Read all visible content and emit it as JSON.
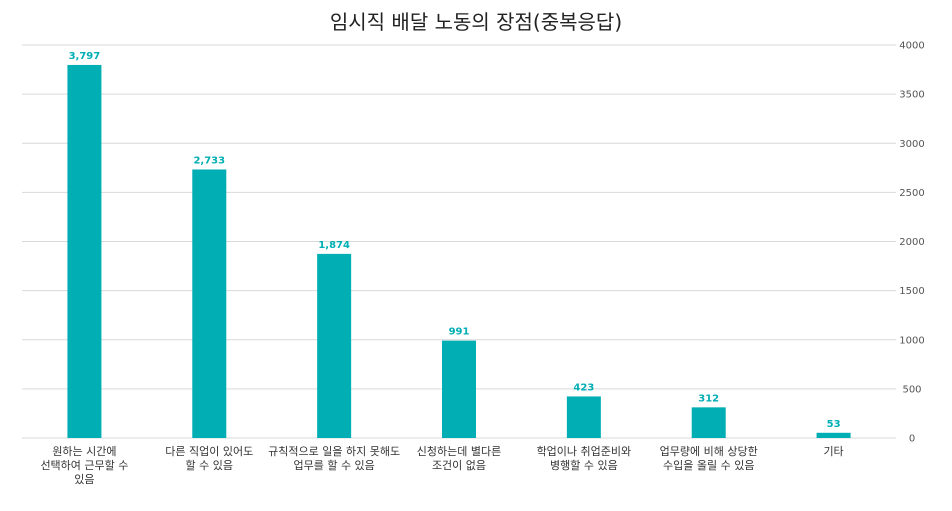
{
  "chart_data": {
    "type": "bar",
    "title": "임시직 배달 노동의 장점(중복응답)",
    "xlabel": "",
    "ylabel": "",
    "ylim": [
      0,
      4000
    ],
    "yticks": [
      0,
      500,
      1000,
      1500,
      2000,
      2500,
      3000,
      3500,
      4000
    ],
    "y_axis_position": "right",
    "grid": true,
    "legend": "none",
    "categories": [
      [
        "원하는 시간에",
        "선택하여 근무할 수",
        "있음"
      ],
      [
        "다른 직업이 있어도",
        "할 수 있음"
      ],
      [
        "규칙적으로 일을 하지 못해도",
        "업무를 할 수 있음"
      ],
      [
        "신청하는데 별다른",
        "조건이 없음"
      ],
      [
        "학업이나 취업준비와",
        "병행할 수 있음"
      ],
      [
        "업무량에 비해 상당한",
        "수입을 올릴 수 있음"
      ],
      [
        "기타"
      ]
    ],
    "values": [
      3797,
      2733,
      1874,
      991,
      423,
      312,
      53
    ],
    "data_labels": [
      "3,797",
      "2,733",
      "1,874",
      "991",
      "423",
      "312",
      "53"
    ],
    "colors": {
      "bar": "#00AEB4",
      "label": "#00AEB4",
      "grid": "#D9D9D9"
    }
  }
}
